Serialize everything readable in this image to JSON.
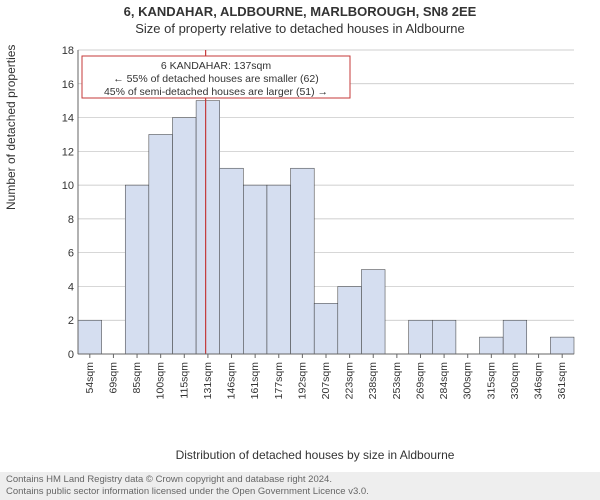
{
  "header": {
    "line1": "6, KANDAHAR, ALDBOURNE, MARLBOROUGH, SN8 2EE",
    "line2": "Size of property relative to detached houses in Aldbourne"
  },
  "ylabel": "Number of detached properties",
  "xlabel": "Distribution of detached houses by size in Aldbourne",
  "footer": {
    "line1": "Contains HM Land Registry data © Crown copyright and database right 2024.",
    "line2": "Contains public sector information licensed under the Open Government Licence v3.0."
  },
  "chart": {
    "type": "histogram",
    "ylim": [
      0,
      18
    ],
    "ytick_step": 2,
    "bin_start": 54,
    "bin_width_sqm": 15.36,
    "bin_count": 21,
    "xtick_labels": [
      "54sqm",
      "69sqm",
      "85sqm",
      "100sqm",
      "115sqm",
      "131sqm",
      "146sqm",
      "161sqm",
      "177sqm",
      "192sqm",
      "207sqm",
      "223sqm",
      "238sqm",
      "253sqm",
      "269sqm",
      "284sqm",
      "300sqm",
      "315sqm",
      "330sqm",
      "346sqm",
      "361sqm"
    ],
    "bar_counts": [
      2,
      0,
      10,
      13,
      14,
      15,
      11,
      10,
      10,
      11,
      3,
      4,
      5,
      0,
      2,
      2,
      0,
      1,
      2,
      0,
      1
    ],
    "bar_color": "#d5def0",
    "bar_edge_color": "#333333",
    "grid_color": "#bfbfbf",
    "background_color": "#ffffff",
    "indicator_sqm": 137,
    "indicator_color": "#c43a3a",
    "annotation": {
      "line1": "6 KANDAHAR: 137sqm",
      "line2": "← 55% of detached houses are smaller (62)",
      "line3": "45% of semi-detached houses are larger (51) →",
      "box_stroke": "#c43a3a"
    }
  }
}
